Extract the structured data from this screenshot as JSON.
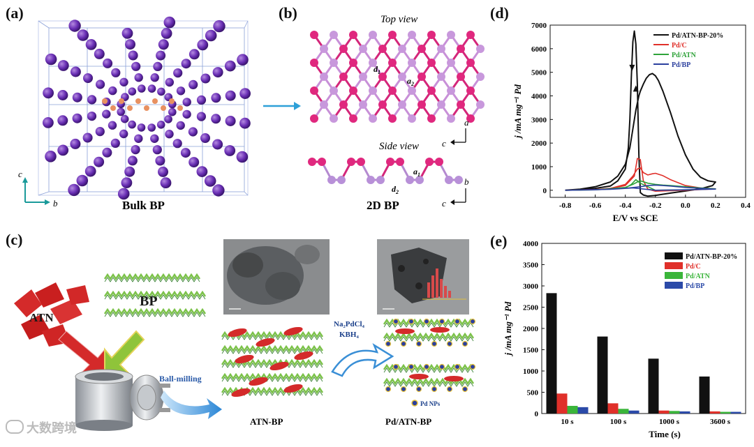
{
  "panels": {
    "a": {
      "label": "(a)",
      "caption": "Bulk BP",
      "axis_c": "c",
      "axis_b": "b"
    },
    "b": {
      "label": "(b)",
      "top_view": "Top view",
      "side_view": "Side view",
      "caption": "2D BP",
      "d1": "d",
      "d1_sub": "1",
      "a2": "a",
      "a2_sub": "2",
      "a1": "a",
      "a1_sub": "1",
      "d2": "d",
      "d2_sub": "2",
      "axis_a": "a",
      "axis_c": "c",
      "axis_b": "b",
      "axis_c2": "c"
    },
    "c": {
      "label": "(c)",
      "atn": "ATN",
      "bp": "BP",
      "ball_milling": "Ball-milling",
      "reagent1": "Na₂PdCl₄",
      "reagent2": "KBH₄",
      "atn_bp": "ATN-BP",
      "pd_atn_bp": "Pd/ATN-BP",
      "pd_nps": "Pd NPs"
    },
    "d": {
      "label": "(d)",
      "xlabel": "E/V vs SCE",
      "ylabel": "j /mA mg⁻¹ Pd"
    },
    "e": {
      "label": "(e)",
      "xlabel": "Time (s)",
      "ylabel": "j /mA mg⁻¹ Pd"
    }
  },
  "watermark": "大数跨境",
  "chart_data": [
    {
      "type": "line",
      "panel": "d",
      "xlabel": "E/V vs SCE",
      "ylabel": "j /mA mg-1 Pd",
      "xlim": [
        -0.9,
        0.4
      ],
      "ylim": [
        -300,
        7000
      ],
      "xticks": [
        "-0.8",
        "-0.6",
        "-0.4",
        "-0.2",
        "0.0",
        "0.2",
        "0.4"
      ],
      "yticks": [
        "0",
        "1000",
        "2000",
        "3000",
        "4000",
        "5000",
        "6000",
        "7000"
      ],
      "legend_position": "top-right",
      "series": [
        {
          "name": "Pd/ATN-BP-20%",
          "color": "#111111",
          "x": [
            -0.8,
            -0.7,
            -0.6,
            -0.5,
            -0.45,
            -0.4,
            -0.37,
            -0.35,
            -0.33,
            -0.31,
            -0.3,
            -0.28,
            -0.26,
            -0.24,
            -0.22,
            -0.2,
            -0.18,
            -0.15,
            -0.1,
            -0.05,
            0.0,
            0.05,
            0.1,
            0.15,
            0.2,
            0.18,
            0.1,
            0.0,
            -0.1,
            -0.2,
            -0.25,
            -0.28,
            -0.3,
            -0.31,
            -0.32,
            -0.33,
            -0.34,
            -0.35,
            -0.36,
            -0.37,
            -0.38,
            -0.4,
            -0.45,
            -0.5,
            -0.6,
            -0.7,
            -0.8
          ],
          "y": [
            0,
            50,
            150,
            350,
            600,
            1100,
            1800,
            2600,
            3400,
            4000,
            4200,
            4500,
            4750,
            4900,
            4950,
            4850,
            4650,
            4200,
            3300,
            2300,
            1500,
            900,
            550,
            400,
            350,
            200,
            60,
            -30,
            -120,
            -220,
            -250,
            -200,
            -100,
            1500,
            4500,
            6200,
            6750,
            6300,
            4800,
            3000,
            1800,
            900,
            400,
            180,
            80,
            20,
            0
          ]
        },
        {
          "name": "Pd/C",
          "color": "#e0302a",
          "x": [
            -0.8,
            -0.6,
            -0.5,
            -0.4,
            -0.35,
            -0.32,
            -0.3,
            -0.28,
            -0.25,
            -0.22,
            -0.2,
            -0.15,
            -0.1,
            0.0,
            0.1,
            0.2,
            0.1,
            0.0,
            -0.1,
            -0.2,
            -0.25,
            -0.28,
            -0.3,
            -0.32,
            -0.34,
            -0.4,
            -0.5,
            -0.6,
            -0.8
          ],
          "y": [
            0,
            30,
            80,
            250,
            600,
            900,
            950,
            750,
            650,
            700,
            720,
            620,
            450,
            200,
            100,
            60,
            30,
            0,
            -20,
            -40,
            50,
            400,
            1300,
            1350,
            600,
            200,
            80,
            30,
            0
          ]
        },
        {
          "name": "Pd/ATN",
          "color": "#2fa33a",
          "x": [
            -0.8,
            -0.6,
            -0.4,
            -0.35,
            -0.32,
            -0.3,
            -0.25,
            -0.2,
            -0.15,
            -0.1,
            0.0,
            0.1,
            0.2,
            0.0,
            -0.2,
            -0.3,
            -0.33,
            -0.36,
            -0.4,
            -0.6,
            -0.8
          ],
          "y": [
            0,
            20,
            120,
            250,
            350,
            400,
            300,
            250,
            220,
            200,
            150,
            100,
            60,
            20,
            0,
            300,
            450,
            250,
            100,
            20,
            0
          ]
        },
        {
          "name": "Pd/BP",
          "color": "#2b3f9e",
          "x": [
            -0.8,
            -0.6,
            -0.4,
            -0.3,
            -0.25,
            -0.2,
            -0.15,
            -0.1,
            0.0,
            0.1,
            0.2,
            0.0,
            -0.2,
            -0.35,
            -0.5,
            -0.8
          ],
          "y": [
            0,
            20,
            80,
            150,
            200,
            220,
            200,
            180,
            120,
            80,
            50,
            20,
            0,
            100,
            40,
            0
          ]
        }
      ]
    },
    {
      "type": "bar",
      "panel": "e",
      "xlabel": "Time (s)",
      "ylabel": "j /mA mg-1 Pd",
      "ylim": [
        0,
        4000
      ],
      "yticks": [
        "0",
        "500",
        "1000",
        "1500",
        "2000",
        "2500",
        "3000",
        "3500",
        "4000"
      ],
      "categories": [
        "10 s",
        "100 s",
        "1000 s",
        "3600 s"
      ],
      "legend_position": "top-right",
      "series": [
        {
          "name": "Pd/ATN-BP-20%",
          "color": "#111111",
          "values": [
            2830,
            1810,
            1290,
            870
          ]
        },
        {
          "name": "Pd/C",
          "color": "#e0302a",
          "values": [
            470,
            240,
            70,
            50
          ]
        },
        {
          "name": "Pd/ATN",
          "color": "#3ab53a",
          "values": [
            180,
            110,
            60,
            40
          ]
        },
        {
          "name": "Pd/BP",
          "color": "#2b4aa8",
          "values": [
            150,
            70,
            50,
            40
          ]
        }
      ]
    }
  ]
}
